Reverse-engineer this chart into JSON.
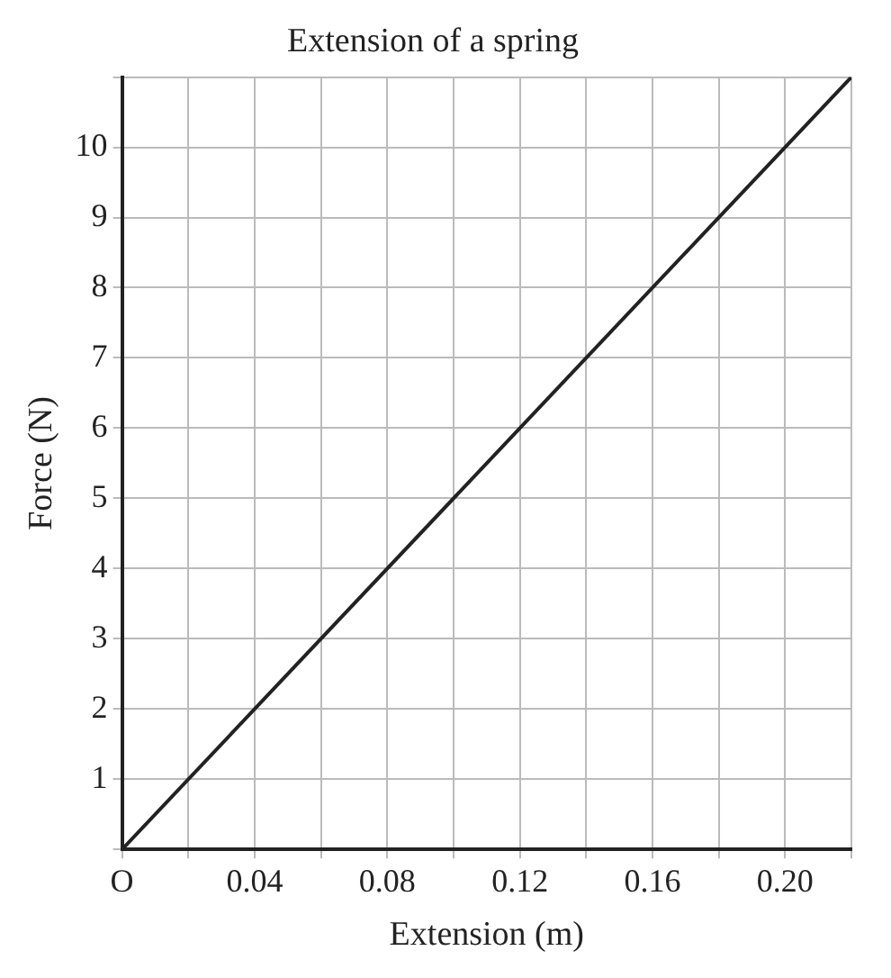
{
  "chart_data": {
    "type": "line",
    "title": "Extension of a spring",
    "xlabel": "Extension (m)",
    "ylabel": "Force (N)",
    "x": [
      0,
      0.22
    ],
    "series": [
      {
        "color": "#222222",
        "values": [
          0,
          11
        ]
      }
    ],
    "xlim": [
      0,
      0.22
    ],
    "ylim": [
      0,
      11
    ],
    "xticks": [
      {
        "value": 0,
        "label": "O"
      },
      {
        "value": 0.02,
        "label": null
      },
      0.04,
      {
        "value": 0.06,
        "label": null
      },
      0.08,
      {
        "value": 0.1,
        "label": null
      },
      0.12,
      {
        "value": 0.14,
        "label": null
      },
      0.16,
      {
        "value": 0.18,
        "label": null
      },
      {
        "value": 0.2,
        "label": "0.20"
      },
      {
        "value": 0.22,
        "label": null
      }
    ],
    "yticks": [
      {
        "value": 0,
        "label": null
      },
      1,
      2,
      3,
      4,
      5,
      6,
      7,
      8,
      9,
      10,
      {
        "value": 11,
        "label": null
      }
    ],
    "grid": true,
    "marker": "none",
    "line_style": "solid"
  }
}
